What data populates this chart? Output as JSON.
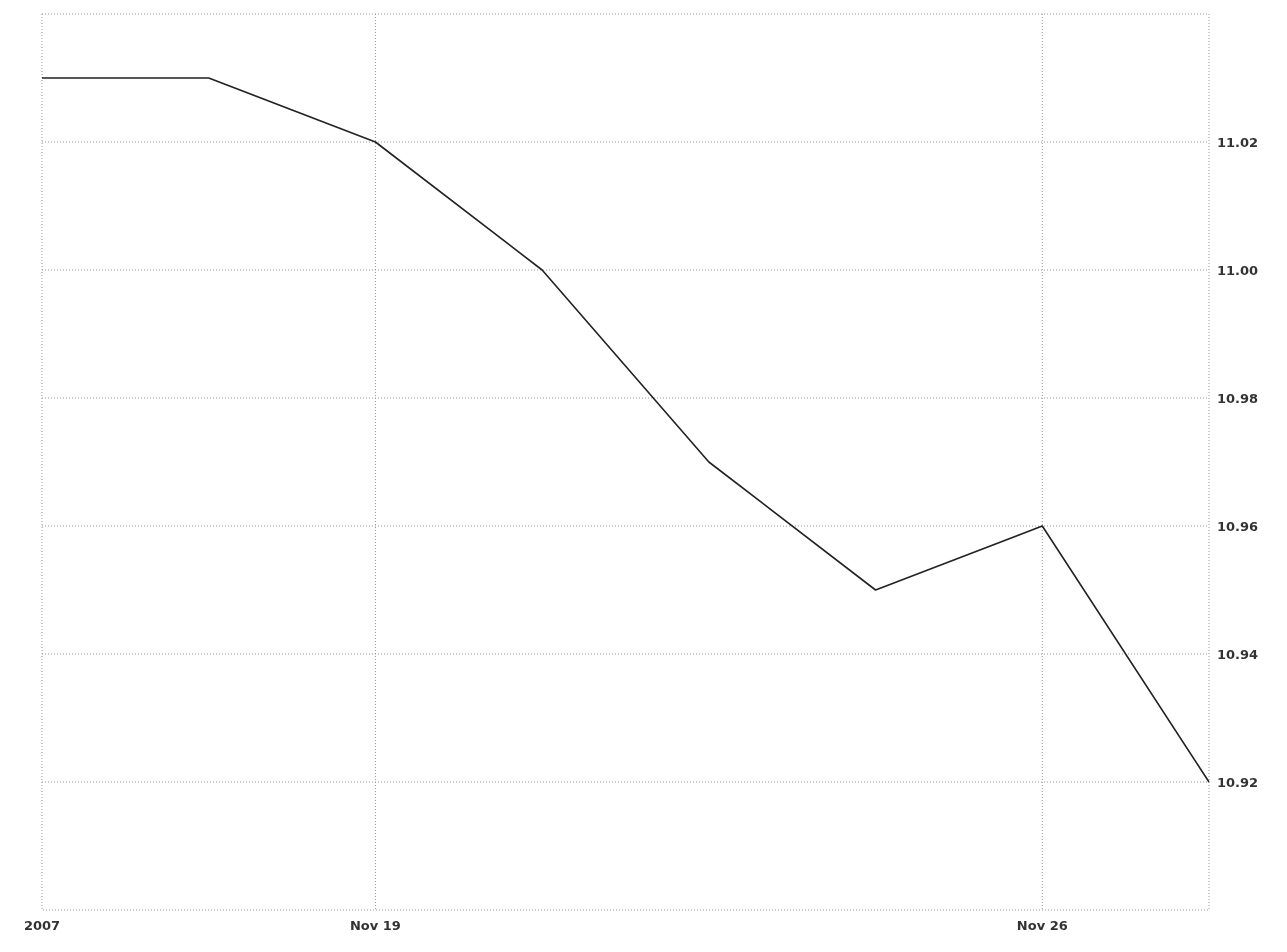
{
  "chart_data": {
    "type": "line",
    "categories": [
      "2007",
      null,
      "Nov 19",
      null,
      null,
      null,
      "Nov 26",
      null
    ],
    "series": [
      {
        "color": "#222222",
        "values": [
          11.03,
          11.03,
          11.02,
          11.0,
          10.97,
          10.95,
          10.96,
          10.92
        ]
      }
    ],
    "ylim": [
      10.9,
      11.04
    ],
    "yticks": [
      10.92,
      10.94,
      10.96,
      10.98,
      {
        "value": 11,
        "label": "11.00"
      },
      11.02
    ],
    "grid": true,
    "marker": "none",
    "line_style": "solid"
  }
}
